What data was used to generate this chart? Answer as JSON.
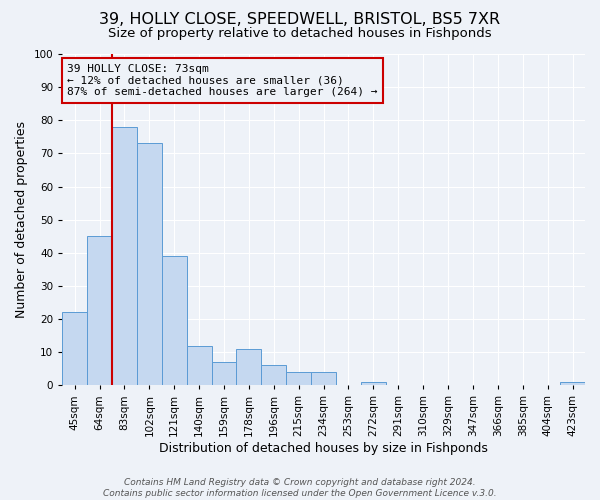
{
  "title1": "39, HOLLY CLOSE, SPEEDWELL, BRISTOL, BS5 7XR",
  "title2": "Size of property relative to detached houses in Fishponds",
  "xlabel": "Distribution of detached houses by size in Fishponds",
  "ylabel": "Number of detached properties",
  "bin_labels": [
    "45sqm",
    "64sqm",
    "83sqm",
    "102sqm",
    "121sqm",
    "140sqm",
    "159sqm",
    "178sqm",
    "196sqm",
    "215sqm",
    "234sqm",
    "253sqm",
    "272sqm",
    "291sqm",
    "310sqm",
    "329sqm",
    "347sqm",
    "366sqm",
    "385sqm",
    "404sqm",
    "423sqm"
  ],
  "bar_heights": [
    22,
    45,
    78,
    73,
    39,
    12,
    7,
    11,
    6,
    4,
    4,
    0,
    1,
    0,
    0,
    0,
    0,
    0,
    0,
    0,
    1
  ],
  "bar_color": "#c5d8f0",
  "bar_edge_color": "#5b9bd5",
  "vline_x": 1.5,
  "vline_color": "#cc0000",
  "annotation_title": "39 HOLLY CLOSE: 73sqm",
  "annotation_line1": "← 12% of detached houses are smaller (36)",
  "annotation_line2": "87% of semi-detached houses are larger (264) →",
  "annotation_box_color": "#cc0000",
  "ylim": [
    0,
    100
  ],
  "yticks": [
    0,
    10,
    20,
    30,
    40,
    50,
    60,
    70,
    80,
    90,
    100
  ],
  "footer1": "Contains HM Land Registry data © Crown copyright and database right 2024.",
  "footer2": "Contains public sector information licensed under the Open Government Licence v.3.0.",
  "bg_color": "#eef2f8",
  "plot_bg_color": "#eef2f8",
  "title1_fontsize": 11.5,
  "title2_fontsize": 9.5,
  "tick_fontsize": 7.5,
  "ylabel_fontsize": 9,
  "xlabel_fontsize": 9,
  "footer_fontsize": 6.5
}
